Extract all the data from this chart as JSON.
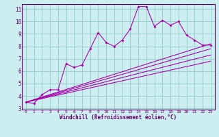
{
  "bg_color": "#cceef0",
  "line_color": "#aa00aa",
  "grid_color": "#99cccc",
  "xlabel": "Windchill (Refroidissement éolien,°C)",
  "xlabel_color": "#660066",
  "tick_color": "#660066",
  "xmin": 0,
  "xmax": 23,
  "ymin": 3,
  "ymax": 11,
  "yticks": [
    3,
    4,
    5,
    6,
    7,
    8,
    9,
    10,
    11
  ],
  "xticks": [
    0,
    1,
    2,
    3,
    4,
    5,
    6,
    7,
    8,
    9,
    10,
    11,
    12,
    13,
    14,
    15,
    16,
    17,
    18,
    19,
    20,
    21,
    22,
    23
  ],
  "lines": [
    {
      "x": [
        0,
        1,
        2,
        3,
        4,
        5,
        6,
        7,
        8,
        9,
        10,
        11,
        12,
        13,
        14,
        15,
        16,
        17,
        18,
        19,
        20,
        21,
        22,
        23
      ],
      "y": [
        3.5,
        3.4,
        4.1,
        4.5,
        4.5,
        6.6,
        6.3,
        6.5,
        7.8,
        9.1,
        8.3,
        8.0,
        8.5,
        9.4,
        11.2,
        11.2,
        9.6,
        10.1,
        9.7,
        10.0,
        8.9,
        8.5,
        8.1,
        8.1
      ]
    },
    {
      "x": [
        0,
        23
      ],
      "y": [
        3.5,
        8.2
      ]
    },
    {
      "x": [
        0,
        23
      ],
      "y": [
        3.5,
        7.8
      ]
    },
    {
      "x": [
        0,
        23
      ],
      "y": [
        3.5,
        7.3
      ]
    },
    {
      "x": [
        0,
        23
      ],
      "y": [
        3.5,
        6.8
      ]
    }
  ]
}
